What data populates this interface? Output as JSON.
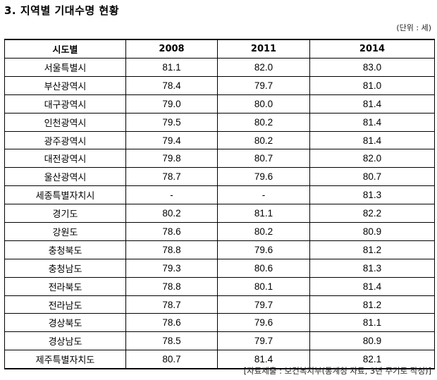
{
  "title": "3. 지역별 기대수명 현황",
  "unit": "(단위 : 세)",
  "table": {
    "headers": [
      "시도별",
      "2008",
      "2011",
      "2014"
    ],
    "rows": [
      [
        "서울특별시",
        "81.1",
        "82.0",
        "83.0"
      ],
      [
        "부산광역시",
        "78.4",
        "79.7",
        "81.0"
      ],
      [
        "대구광역시",
        "79.0",
        "80.0",
        "81.4"
      ],
      [
        "인천광역시",
        "79.5",
        "80.2",
        "81.4"
      ],
      [
        "광주광역시",
        "79.4",
        "80.2",
        "81.4"
      ],
      [
        "대전광역시",
        "79.8",
        "80.7",
        "82.0"
      ],
      [
        "울산광역시",
        "78.7",
        "79.6",
        "80.7"
      ],
      [
        "세종특별자치시",
        "-",
        "-",
        "81.3"
      ],
      [
        "경기도",
        "80.2",
        "81.1",
        "82.2"
      ],
      [
        "강원도",
        "78.6",
        "80.2",
        "80.9"
      ],
      [
        "충청북도",
        "78.8",
        "79.6",
        "81.2"
      ],
      [
        "충청남도",
        "79.3",
        "80.6",
        "81.3"
      ],
      [
        "전라북도",
        "78.8",
        "80.1",
        "81.4"
      ],
      [
        "전라남도",
        "78.7",
        "79.7",
        "81.2"
      ],
      [
        "경상북도",
        "78.6",
        "79.6",
        "81.1"
      ],
      [
        "경상남도",
        "78.5",
        "79.7",
        "80.9"
      ],
      [
        "제주특별자치도",
        "80.7",
        "81.4",
        "82.1"
      ]
    ]
  },
  "source": "[자료제출 : 보건복지부(통계청 자료, 3년 주기로 작성)]"
}
